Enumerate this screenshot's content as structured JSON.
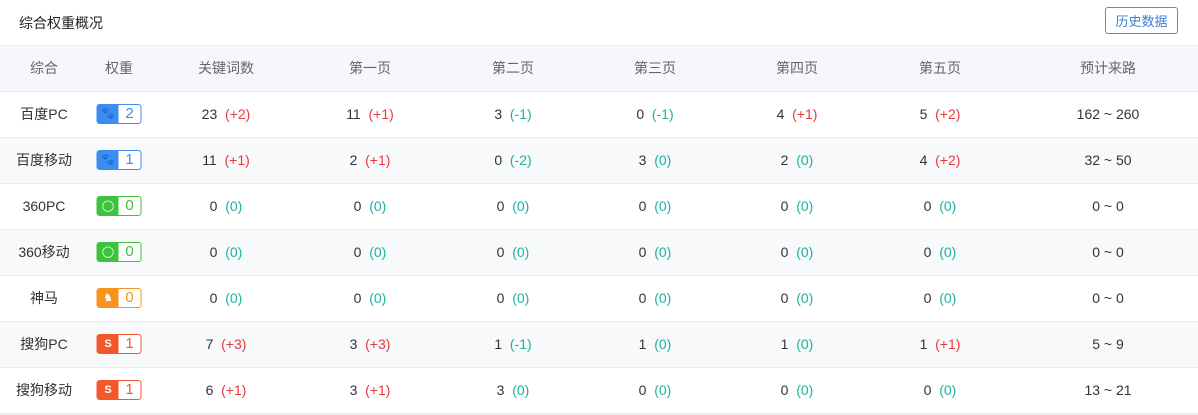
{
  "title": "综合权重概况",
  "history_button": "历史数据",
  "columns": [
    "综合",
    "权重",
    "关键词数",
    "第一页",
    "第二页",
    "第三页",
    "第四页",
    "第五页",
    "预计来路"
  ],
  "colors": {
    "up": "#e8383d",
    "down": "#19b3a0",
    "baidu": "#3d8cf0",
    "360": "#3cc43c",
    "shenma": "#f7931e",
    "sogou": "#f2582c"
  },
  "rows": [
    {
      "name": "百度PC",
      "engine": "baidu",
      "icon": "baidu-paw-icon",
      "weight": "2",
      "cells": [
        [
          "23",
          "(+2)",
          "up"
        ],
        [
          "11",
          "(+1)",
          "up"
        ],
        [
          "3",
          "(-1)",
          "down"
        ],
        [
          "0",
          "(-1)",
          "down"
        ],
        [
          "4",
          "(+1)",
          "up"
        ],
        [
          "5",
          "(+2)",
          "up"
        ]
      ],
      "traffic": "162 ~ 260"
    },
    {
      "name": "百度移动",
      "engine": "baidu",
      "icon": "baidu-paw-icon",
      "weight": "1",
      "cells": [
        [
          "11",
          "(+1)",
          "up"
        ],
        [
          "2",
          "(+1)",
          "up"
        ],
        [
          "0",
          "(-2)",
          "down"
        ],
        [
          "3",
          "(0)",
          "zero"
        ],
        [
          "2",
          "(0)",
          "zero"
        ],
        [
          "4",
          "(+2)",
          "up"
        ]
      ],
      "traffic": "32 ~ 50"
    },
    {
      "name": "360PC",
      "engine": "360",
      "icon": "360-logo-icon",
      "weight": "0",
      "cells": [
        [
          "0",
          "(0)",
          "zero"
        ],
        [
          "0",
          "(0)",
          "zero"
        ],
        [
          "0",
          "(0)",
          "zero"
        ],
        [
          "0",
          "(0)",
          "zero"
        ],
        [
          "0",
          "(0)",
          "zero"
        ],
        [
          "0",
          "(0)",
          "zero"
        ]
      ],
      "traffic": "0 ~ 0"
    },
    {
      "name": "360移动",
      "engine": "360",
      "icon": "360-logo-icon",
      "weight": "0",
      "cells": [
        [
          "0",
          "(0)",
          "zero"
        ],
        [
          "0",
          "(0)",
          "zero"
        ],
        [
          "0",
          "(0)",
          "zero"
        ],
        [
          "0",
          "(0)",
          "zero"
        ],
        [
          "0",
          "(0)",
          "zero"
        ],
        [
          "0",
          "(0)",
          "zero"
        ]
      ],
      "traffic": "0 ~ 0"
    },
    {
      "name": "神马",
      "engine": "shenma",
      "icon": "shenma-horse-icon",
      "weight": "0",
      "cells": [
        [
          "0",
          "(0)",
          "zero"
        ],
        [
          "0",
          "(0)",
          "zero"
        ],
        [
          "0",
          "(0)",
          "zero"
        ],
        [
          "0",
          "(0)",
          "zero"
        ],
        [
          "0",
          "(0)",
          "zero"
        ],
        [
          "0",
          "(0)",
          "zero"
        ]
      ],
      "traffic": "0 ~ 0"
    },
    {
      "name": "搜狗PC",
      "engine": "sogou",
      "icon": "sogou-s-icon",
      "weight": "1",
      "cells": [
        [
          "7",
          "(+3)",
          "up"
        ],
        [
          "3",
          "(+3)",
          "up"
        ],
        [
          "1",
          "(-1)",
          "down"
        ],
        [
          "1",
          "(0)",
          "zero"
        ],
        [
          "1",
          "(0)",
          "zero"
        ],
        [
          "1",
          "(+1)",
          "up"
        ]
      ],
      "traffic": "5 ~ 9"
    },
    {
      "name": "搜狗移动",
      "engine": "sogou",
      "icon": "sogou-s-icon",
      "weight": "1",
      "cells": [
        [
          "6",
          "(+1)",
          "up"
        ],
        [
          "3",
          "(+1)",
          "up"
        ],
        [
          "3",
          "(0)",
          "zero"
        ],
        [
          "0",
          "(0)",
          "zero"
        ],
        [
          "0",
          "(0)",
          "zero"
        ],
        [
          "0",
          "(0)",
          "zero"
        ]
      ],
      "traffic": "13 ~ 21"
    }
  ]
}
